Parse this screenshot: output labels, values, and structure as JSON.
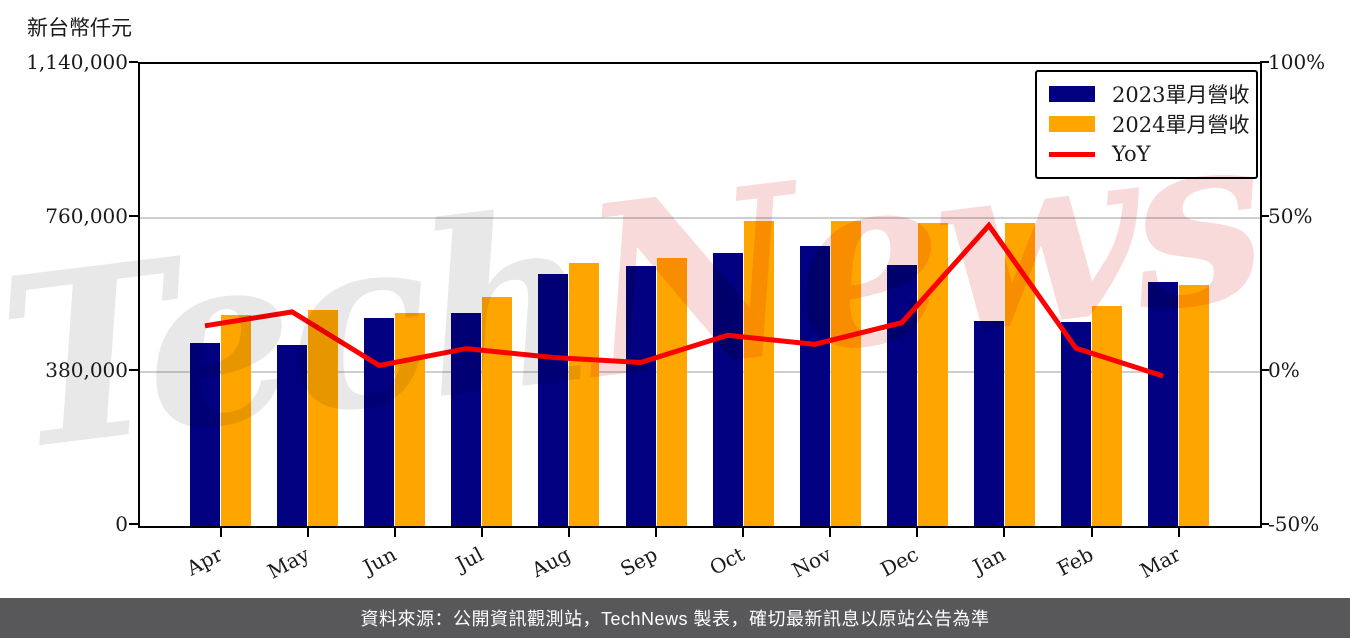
{
  "y_axis_title": "新台幣仟元",
  "watermark": {
    "part1": "Tech",
    "part2": "News",
    "part1_color": "#e8e8e8",
    "part2_color": "#f8dada"
  },
  "legend": {
    "items": [
      {
        "label": "2023單月營收",
        "swatch": "box",
        "color": "#000080"
      },
      {
        "label": "2024單月營收",
        "swatch": "box",
        "color": "#FFA500"
      },
      {
        "label": "YoY",
        "swatch": "line",
        "color": "#FF0000"
      }
    ]
  },
  "footer": {
    "text": "資料來源：公開資訊觀測站，TechNews 製表，確切最新訊息以原站公告為準",
    "background": "#58585b"
  },
  "chart_data": {
    "type": "bar+line",
    "title": "",
    "categories": [
      "Apr",
      "May",
      "Jun",
      "Jul",
      "Aug",
      "Sep",
      "Oct",
      "Nov",
      "Dec",
      "Jan",
      "Feb",
      "Mar"
    ],
    "series": [
      {
        "name": "2023單月營收",
        "type": "bar",
        "axis": "left",
        "color": "#000080",
        "values": [
          452000,
          447000,
          514000,
          525000,
          621000,
          642000,
          673000,
          691000,
          644000,
          506000,
          504000,
          603000
        ]
      },
      {
        "name": "2024單月營收",
        "type": "bar",
        "axis": "left",
        "color": "#FFA500",
        "values": [
          520000,
          534000,
          525000,
          565000,
          650000,
          662000,
          753000,
          753000,
          747000,
          747000,
          543000,
          595000
        ]
      },
      {
        "name": "YoY",
        "type": "line",
        "axis": "right",
        "color": "#FF0000",
        "unit": "%",
        "values": [
          15.0,
          19.5,
          2.1,
          7.6,
          4.7,
          3.1,
          11.9,
          9.0,
          16.0,
          47.6,
          7.7,
          -1.3
        ]
      }
    ],
    "left_axis": {
      "title": "新台幣仟元",
      "unit": "新台幣仟元",
      "tick_labels": [
        "0",
        "380,000",
        "760,000",
        "1,140,000"
      ],
      "tick_values": [
        0,
        380000,
        760000,
        1140000
      ],
      "range": [
        0,
        1140000
      ]
    },
    "right_axis": {
      "tick_labels": [
        "-50%",
        "0%",
        "50%",
        "100%"
      ],
      "tick_values": [
        -50,
        0,
        50,
        100
      ],
      "range": [
        -50,
        100
      ]
    },
    "grid": "horizontal",
    "grid_color": "#cfcfcf",
    "legend_position": "top-right-inside"
  }
}
